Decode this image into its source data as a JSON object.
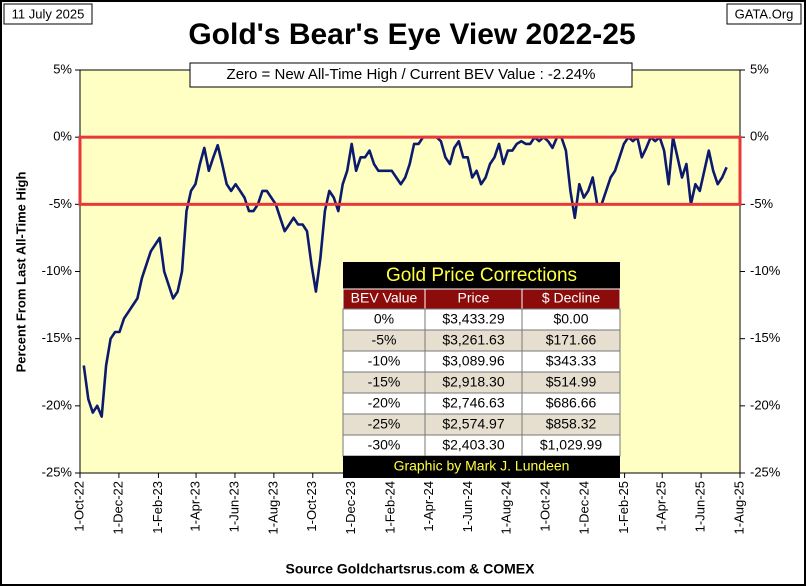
{
  "chart_data": {
    "type": "line",
    "title": "Gold's Bear's Eye View 2022-25",
    "date_label": "11 July 2025",
    "site": "GATA.Org",
    "annotation": "Zero = New All-Time High / Current  BEV Value : -2.24%",
    "ylabel": "Percent  From Last  All-Time  High",
    "xlabel": "Source Goldchartsrus.com & COMEX",
    "color": "#0c1a6e",
    "background": "#ffffc4",
    "band": {
      "range": [
        0,
        -5
      ],
      "color": "#e8383a"
    },
    "grid": false,
    "xlim": [
      "2022-10-01",
      "2025-08-01"
    ],
    "xticks": [
      {
        "value": "2022-10-01",
        "label": "1-Oct-22"
      },
      {
        "value": "2022-12-01",
        "label": "1-Dec-22"
      },
      {
        "value": "2023-02-01",
        "label": "1-Feb-23"
      },
      {
        "value": "2023-04-01",
        "label": "1-Apr-23"
      },
      {
        "value": "2023-06-01",
        "label": "1-Jun-23"
      },
      {
        "value": "2023-08-01",
        "label": "1-Aug-23"
      },
      {
        "value": "2023-10-01",
        "label": "1-Oct-23"
      },
      {
        "value": "2023-12-01",
        "label": "1-Dec-23"
      },
      {
        "value": "2024-02-01",
        "label": "1-Feb-24"
      },
      {
        "value": "2024-04-01",
        "label": "1-Apr-24"
      },
      {
        "value": "2024-06-01",
        "label": "1-Jun-24"
      },
      {
        "value": "2024-08-01",
        "label": "1-Aug-24"
      },
      {
        "value": "2024-10-01",
        "label": "1-Oct-24"
      },
      {
        "value": "2024-12-01",
        "label": "1-Dec-24"
      },
      {
        "value": "2025-02-01",
        "label": "1-Feb-25"
      },
      {
        "value": "2025-04-01",
        "label": "1-Apr-25"
      },
      {
        "value": "2025-06-01",
        "label": "1-Jun-25"
      },
      {
        "value": "2025-08-01",
        "label": "1-Aug-25"
      }
    ],
    "ylim": [
      -25,
      5
    ],
    "yticks": [
      {
        "value": 5,
        "label": "5%"
      },
      {
        "value": 0,
        "label": "0%"
      },
      {
        "value": -5,
        "label": "-5%"
      },
      {
        "value": -10,
        "label": "-10%"
      },
      {
        "value": -15,
        "label": "-15%"
      },
      {
        "value": -20,
        "label": "-20%"
      },
      {
        "value": -25,
        "label": "-25%"
      }
    ],
    "x": [
      "2022-10-07",
      "2022-10-14",
      "2022-10-21",
      "2022-10-28",
      "2022-11-04",
      "2022-11-11",
      "2022-11-18",
      "2022-11-25",
      "2022-12-02",
      "2022-12-09",
      "2022-12-16",
      "2022-12-23",
      "2022-12-30",
      "2023-01-06",
      "2023-01-13",
      "2023-01-20",
      "2023-01-27",
      "2023-02-03",
      "2023-02-10",
      "2023-02-17",
      "2023-02-24",
      "2023-03-03",
      "2023-03-10",
      "2023-03-17",
      "2023-03-24",
      "2023-03-31",
      "2023-04-07",
      "2023-04-14",
      "2023-04-21",
      "2023-04-28",
      "2023-05-05",
      "2023-05-12",
      "2023-05-19",
      "2023-05-26",
      "2023-06-02",
      "2023-06-09",
      "2023-06-16",
      "2023-06-23",
      "2023-06-30",
      "2023-07-07",
      "2023-07-14",
      "2023-07-21",
      "2023-07-28",
      "2023-08-04",
      "2023-08-11",
      "2023-08-18",
      "2023-08-25",
      "2023-09-01",
      "2023-09-08",
      "2023-09-15",
      "2023-09-22",
      "2023-09-29",
      "2023-10-06",
      "2023-10-13",
      "2023-10-20",
      "2023-10-27",
      "2023-11-03",
      "2023-11-10",
      "2023-11-17",
      "2023-11-24",
      "2023-12-01",
      "2023-12-08",
      "2023-12-15",
      "2023-12-22",
      "2023-12-29",
      "2024-01-05",
      "2024-01-12",
      "2024-01-19",
      "2024-01-26",
      "2024-02-02",
      "2024-02-09",
      "2024-02-16",
      "2024-02-23",
      "2024-03-01",
      "2024-03-08",
      "2024-03-15",
      "2024-03-22",
      "2024-03-29",
      "2024-04-05",
      "2024-04-12",
      "2024-04-19",
      "2024-04-26",
      "2024-05-03",
      "2024-05-10",
      "2024-05-17",
      "2024-05-24",
      "2024-05-31",
      "2024-06-07",
      "2024-06-14",
      "2024-06-21",
      "2024-06-28",
      "2024-07-05",
      "2024-07-12",
      "2024-07-19",
      "2024-07-26",
      "2024-08-02",
      "2024-08-09",
      "2024-08-16",
      "2024-08-23",
      "2024-08-30",
      "2024-09-06",
      "2024-09-13",
      "2024-09-20",
      "2024-09-27",
      "2024-10-04",
      "2024-10-11",
      "2024-10-18",
      "2024-10-25",
      "2024-11-01",
      "2024-11-08",
      "2024-11-15",
      "2024-11-22",
      "2024-11-29",
      "2024-12-06",
      "2024-12-13",
      "2024-12-20",
      "2024-12-27",
      "2025-01-03",
      "2025-01-10",
      "2025-01-17",
      "2025-01-24",
      "2025-01-31",
      "2025-02-07",
      "2025-02-14",
      "2025-02-21",
      "2025-02-28",
      "2025-03-07",
      "2025-03-14",
      "2025-03-21",
      "2025-03-28",
      "2025-04-04",
      "2025-04-11",
      "2025-04-18",
      "2025-04-25",
      "2025-05-02",
      "2025-05-09",
      "2025-05-16",
      "2025-05-23",
      "2025-05-30",
      "2025-06-06",
      "2025-06-13",
      "2025-06-20",
      "2025-06-27",
      "2025-07-04",
      "2025-07-11"
    ],
    "values": [
      -17,
      -19.5,
      -20.5,
      -20,
      -20.8,
      -17,
      -15,
      -14.5,
      -14.5,
      -13.5,
      -13,
      -12.5,
      -12,
      -10.5,
      -9.5,
      -8.5,
      -8,
      -7.5,
      -10,
      -11,
      -12,
      -11.5,
      -10,
      -5.5,
      -4,
      -3.5,
      -2,
      -0.8,
      -2.5,
      -1.5,
      -0.6,
      -2,
      -3.5,
      -4,
      -3.5,
      -4,
      -4.5,
      -5.5,
      -5.5,
      -5,
      -4,
      -4,
      -4.5,
      -5,
      -6,
      -7,
      -6.5,
      -6,
      -6.5,
      -6.5,
      -7,
      -9.5,
      -11.5,
      -9,
      -5.5,
      -4,
      -4.5,
      -5.5,
      -3.5,
      -2.5,
      -0.5,
      -2.5,
      -1.5,
      -1.5,
      -1,
      -2,
      -2.5,
      -2.5,
      -2.5,
      -2.5,
      -3,
      -3.5,
      -3,
      -2,
      -0.5,
      -0.5,
      0,
      0,
      0,
      0,
      -0.3,
      -1.5,
      -2,
      -0.8,
      -0.3,
      -1.5,
      -1.5,
      -3,
      -2.5,
      -3.5,
      -3,
      -2,
      -1.5,
      -0.5,
      -2,
      -1,
      -1,
      -0.5,
      -0.3,
      -0.5,
      -0.5,
      0,
      -0.3,
      0,
      -0.3,
      -0.8,
      0,
      0,
      -1,
      -4,
      -6,
      -3.5,
      -4.5,
      -4,
      -3,
      -5,
      -5,
      -4,
      -3,
      -2.5,
      -1.5,
      -0.5,
      0,
      -0.3,
      0,
      -1.5,
      -0.8,
      0,
      -0.3,
      0,
      -1,
      -3.5,
      0,
      -1.5,
      -3,
      -2,
      -5,
      -3.5,
      -4,
      -2.5,
      -1,
      -2.5,
      -3.5,
      -3,
      -2.24
    ]
  },
  "table": {
    "title": "Gold Price Corrections",
    "header": [
      "BEV Value",
      "Price",
      "$ Decline"
    ],
    "rows": [
      [
        "0%",
        "$3,433.29",
        "$0.00"
      ],
      [
        "-5%",
        "$3,261.63",
        "$171.66"
      ],
      [
        "-10%",
        "$3,089.96",
        "$343.33"
      ],
      [
        "-15%",
        "$2,918.30",
        "$514.99"
      ],
      [
        "-20%",
        "$2,746.63",
        "$686.66"
      ],
      [
        "-25%",
        "$2,574.97",
        "$858.32"
      ],
      [
        "-30%",
        "$2,403.30",
        "$1,029.99"
      ]
    ],
    "footer": "Graphic by Mark J. Lundeen"
  }
}
